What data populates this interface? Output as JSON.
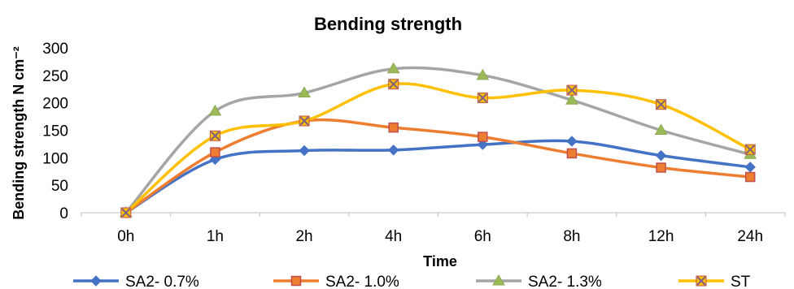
{
  "chart_data": {
    "type": "line",
    "title": "Bending strength",
    "xlabel": "Time",
    "ylabel": "Bending strength N cm⁻²",
    "categories": [
      "0h",
      "1h",
      "2h",
      "4h",
      "6h",
      "8h",
      "12h",
      "24h"
    ],
    "ylim": [
      0,
      300
    ],
    "yticks": [
      0,
      50,
      100,
      150,
      200,
      250,
      300
    ],
    "grid": false,
    "smooth": true,
    "legend_position": "bottom",
    "series": [
      {
        "name": "SA2- 0.7%",
        "color": "#4472C4",
        "marker": "diamond",
        "values": [
          0,
          97,
          113,
          114,
          124,
          130,
          104,
          83
        ]
      },
      {
        "name": "SA2- 1.0%",
        "color": "#ED7D31",
        "marker": "square",
        "values": [
          0,
          110,
          167,
          155,
          138,
          108,
          82,
          65
        ]
      },
      {
        "name": "SA2- 1.3%",
        "color": "#A5A5A5",
        "marker": "triangle",
        "values": [
          0,
          185,
          218,
          262,
          250,
          205,
          150,
          106
        ]
      },
      {
        "name": "ST",
        "color": "#FFC000",
        "marker": "x",
        "values": [
          0,
          140,
          167,
          234,
          209,
          223,
          197,
          115
        ]
      }
    ]
  }
}
